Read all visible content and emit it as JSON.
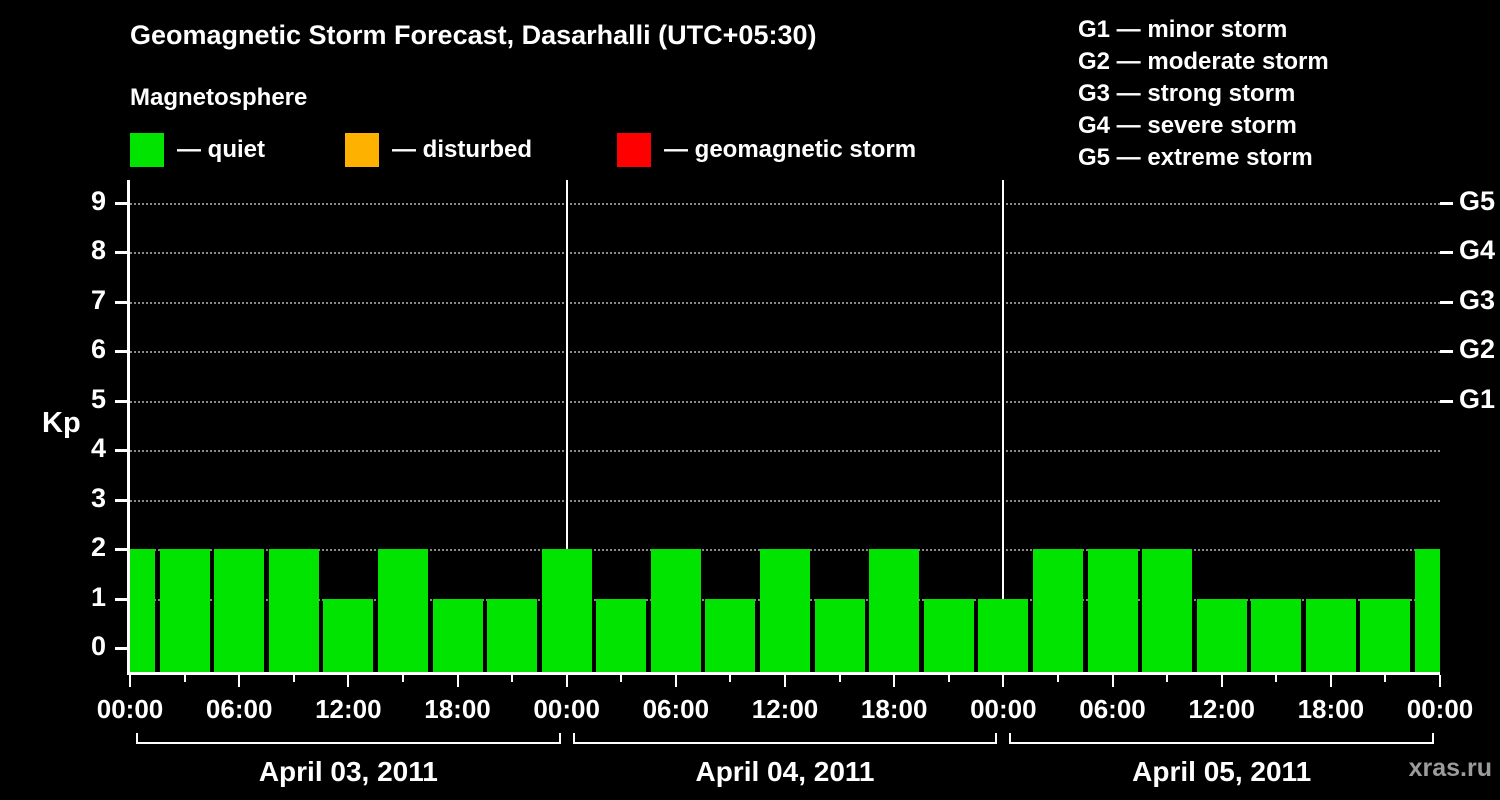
{
  "header": {
    "title": "Geomagnetic Storm Forecast, Dasarhalli (UTC+05:30)",
    "subtitle": "Magnetosphere",
    "legend": [
      {
        "key": "quiet",
        "label": "— quiet",
        "color": "#00e400"
      },
      {
        "key": "disturbed",
        "label": "— disturbed",
        "color": "#ffb100"
      },
      {
        "key": "geomagnetic-storm",
        "label": "— geomagnetic storm",
        "color": "#ff0000"
      }
    ],
    "g_scale": [
      "G1 — minor storm",
      "G2 — moderate storm",
      "G3 — strong storm",
      "G4 — severe storm",
      "G5 — extreme storm"
    ]
  },
  "chart_data": {
    "type": "bar",
    "title": "Geomagnetic Storm Forecast, Dasarhalli (UTC+05:30)",
    "ylabel": "Kp",
    "ylim": [
      0,
      9
    ],
    "yticks": [
      0,
      1,
      2,
      3,
      4,
      5,
      6,
      7,
      8,
      9
    ],
    "right_axis_labels": [
      {
        "kp": 5,
        "label": "G1"
      },
      {
        "kp": 6,
        "label": "G2"
      },
      {
        "kp": 7,
        "label": "G3"
      },
      {
        "kp": 8,
        "label": "G4"
      },
      {
        "kp": 9,
        "label": "G5"
      }
    ],
    "bar_color": "#00e400",
    "interval_hours": 3,
    "xticklabels": [
      "00:00",
      "06:00",
      "12:00",
      "18:00"
    ],
    "days": [
      {
        "label": "April 03, 2011",
        "values": [
          2,
          2,
          2,
          2,
          1,
          2,
          1,
          1
        ]
      },
      {
        "label": "April 04, 2011",
        "values": [
          2,
          1,
          2,
          1,
          2,
          1,
          2,
          1
        ]
      },
      {
        "label": "April 05, 2011",
        "values": [
          1,
          2,
          2,
          2,
          1,
          1,
          1,
          1
        ]
      }
    ],
    "next_midnight_value": 2,
    "grid": {
      "horizontal": "dotted",
      "color": "#8a8a8a"
    },
    "legend_position": "top"
  },
  "watermark": "xras.ru"
}
